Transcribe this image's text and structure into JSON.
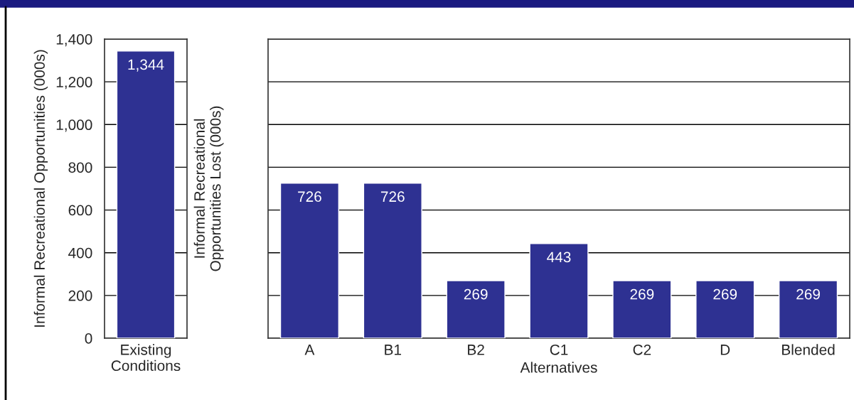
{
  "chart_data": [
    {
      "type": "bar",
      "ylabel": "Informal Recreational Opportunities (000s)",
      "categories": [
        "Existing\nConditions"
      ],
      "series": [
        {
          "color": "#2e3192",
          "values": [
            1344
          ],
          "value_labels": [
            "1,344"
          ]
        }
      ],
      "ylim": [
        0,
        1400
      ],
      "yticks": [
        {
          "value": 0,
          "label": "0"
        },
        {
          "value": 200,
          "label": "200"
        },
        {
          "value": 400,
          "label": "400"
        },
        {
          "value": 600,
          "label": "600"
        },
        {
          "value": 800,
          "label": "800"
        },
        {
          "value": 1000,
          "label": "1,000"
        },
        {
          "value": 1200,
          "label": "1,200"
        },
        {
          "value": 1400,
          "label": "1,400"
        }
      ],
      "grid": "y",
      "legend": false
    },
    {
      "type": "bar",
      "ylabel": "Informal Recreational\nOpportunities Lost (000s)",
      "xlabel": "Alternatives",
      "categories": [
        "A",
        "B1",
        "B2",
        "C1",
        "C2",
        "D",
        "Blended"
      ],
      "series": [
        {
          "color": "#2e3192",
          "values": [
            726,
            726,
            269,
            443,
            269,
            269,
            269
          ]
        }
      ],
      "data_labels": true,
      "ylim": [
        0,
        1400
      ],
      "yticks": [
        0,
        200,
        400,
        600,
        800,
        1000,
        1200,
        1400
      ],
      "tick_labels": "x",
      "grid": "y",
      "legend": false
    }
  ]
}
